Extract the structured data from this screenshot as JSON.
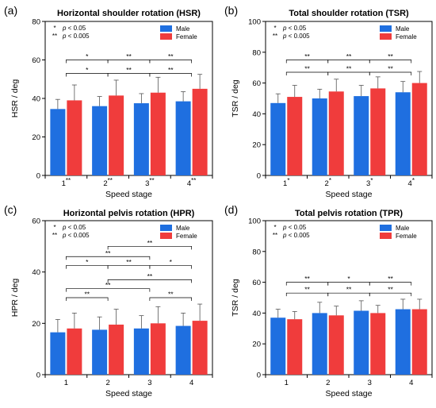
{
  "chart_data": [
    {
      "type": "bar",
      "panel_label": "(a)",
      "title": "Horizontal shoulder rotation (HSR)",
      "xlabel": "Speed stage",
      "ylabel": "HSR / deg",
      "ylim": [
        0,
        80
      ],
      "yticks": [
        0,
        20,
        40,
        60,
        80
      ],
      "categories": [
        "1",
        "2",
        "3",
        "4"
      ],
      "category_marks": [
        "**",
        "**",
        "**",
        "**"
      ],
      "series": [
        {
          "name": "Male",
          "color": "#1f6fe0",
          "values": [
            34.5,
            36,
            37.5,
            38.5
          ],
          "errors": [
            5,
            5,
            5,
            5
          ]
        },
        {
          "name": "Female",
          "color": "#f03c3c",
          "values": [
            39,
            41.5,
            43,
            45
          ],
          "errors": [
            8,
            8,
            8,
            7.5
          ]
        }
      ],
      "significance_key": [
        {
          "mark": "*",
          "text": "p < 0.05"
        },
        {
          "mark": "**",
          "text": "p < 0.005"
        }
      ],
      "brackets": [
        {
          "from": 0,
          "to": 1,
          "y": 60,
          "mark": "*"
        },
        {
          "from": 1,
          "to": 2,
          "y": 60,
          "mark": "**"
        },
        {
          "from": 2,
          "to": 3,
          "y": 60,
          "mark": "**"
        },
        {
          "from": 0,
          "to": 1,
          "y": 53,
          "mark": "*"
        },
        {
          "from": 1,
          "to": 2,
          "y": 53,
          "mark": "**"
        },
        {
          "from": 2,
          "to": 3,
          "y": 53,
          "mark": "**"
        }
      ]
    },
    {
      "type": "bar",
      "panel_label": "(b)",
      "title": "Total shoulder rotation (TSR)",
      "xlabel": "Speed stage",
      "ylabel": "TSR / deg",
      "ylim": [
        0,
        100
      ],
      "yticks": [
        0,
        20,
        40,
        60,
        80,
        100
      ],
      "categories": [
        "1",
        "2",
        "3",
        "4"
      ],
      "category_marks": [
        "*",
        "*",
        "*",
        "*"
      ],
      "series": [
        {
          "name": "Male",
          "color": "#1f6fe0",
          "values": [
            47,
            50,
            51.5,
            54
          ],
          "errors": [
            6,
            6,
            7,
            7
          ]
        },
        {
          "name": "Female",
          "color": "#f03c3c",
          "values": [
            51,
            54.5,
            56.5,
            60
          ],
          "errors": [
            7.5,
            8,
            7.5,
            7.5
          ]
        }
      ],
      "significance_key": [
        {
          "mark": "*",
          "text": "p < 0.05"
        },
        {
          "mark": "**",
          "text": "p < 0.005"
        }
      ],
      "brackets": [
        {
          "from": 0,
          "to": 1,
          "y": 75,
          "mark": "**"
        },
        {
          "from": 1,
          "to": 2,
          "y": 75,
          "mark": "**"
        },
        {
          "from": 2,
          "to": 3,
          "y": 75,
          "mark": "**"
        },
        {
          "from": 0,
          "to": 1,
          "y": 67,
          "mark": "**"
        },
        {
          "from": 1,
          "to": 2,
          "y": 67,
          "mark": "**"
        },
        {
          "from": 2,
          "to": 3,
          "y": 67,
          "mark": "**"
        }
      ]
    },
    {
      "type": "bar",
      "panel_label": "(c)",
      "title": "Horizontal pelvis rotation (HPR)",
      "xlabel": "Speed stage",
      "ylabel": "HPR / deg",
      "ylim": [
        0,
        60
      ],
      "yticks": [
        0,
        20,
        40,
        60
      ],
      "categories": [
        "1",
        "2",
        "3",
        "4"
      ],
      "category_marks": [
        "",
        "",
        "",
        ""
      ],
      "series": [
        {
          "name": "Male",
          "color": "#1f6fe0",
          "values": [
            16.5,
            17.5,
            18,
            19
          ],
          "errors": [
            5,
            5,
            5,
            5
          ]
        },
        {
          "name": "Female",
          "color": "#f03c3c",
          "values": [
            18,
            19.5,
            20,
            21
          ],
          "errors": [
            6,
            6,
            6.5,
            6.5
          ]
        }
      ],
      "significance_key": [
        {
          "mark": "*",
          "text": "p < 0.05"
        },
        {
          "mark": "**",
          "text": "p < 0.005"
        }
      ],
      "brackets": [
        {
          "from": 1,
          "to": 3,
          "y": 50,
          "mark": "**"
        },
        {
          "from": 0,
          "to": 2,
          "y": 46,
          "mark": "**"
        },
        {
          "from": 0,
          "to": 1,
          "y": 42.5,
          "mark": "*"
        },
        {
          "from": 1,
          "to": 2,
          "y": 42.5,
          "mark": "**"
        },
        {
          "from": 2,
          "to": 3,
          "y": 42.5,
          "mark": "*"
        },
        {
          "from": 1,
          "to": 3,
          "y": 37,
          "mark": "**"
        },
        {
          "from": 0,
          "to": 2,
          "y": 33.5,
          "mark": "**"
        },
        {
          "from": 0,
          "to": 1,
          "y": 30,
          "mark": "**"
        },
        {
          "from": 2,
          "to": 3,
          "y": 30,
          "mark": "**"
        }
      ]
    },
    {
      "type": "bar",
      "panel_label": "(d)",
      "title": "Total pelvis rotation (TPR)",
      "xlabel": "Speed stage",
      "ylabel": "TSR / deg",
      "ylim": [
        0,
        100
      ],
      "yticks": [
        0,
        20,
        40,
        60,
        80,
        100
      ],
      "categories": [
        "1",
        "2",
        "3",
        "4"
      ],
      "category_marks": [
        "",
        "",
        "",
        ""
      ],
      "series": [
        {
          "name": "Male",
          "color": "#1f6fe0",
          "values": [
            37,
            40,
            41.5,
            42.5
          ],
          "errors": [
            5.5,
            7,
            6.5,
            6.5
          ]
        },
        {
          "name": "Female",
          "color": "#f03c3c",
          "values": [
            36,
            38.5,
            40,
            42.5
          ],
          "errors": [
            5,
            6,
            5,
            6.5
          ]
        }
      ],
      "significance_key": [
        {
          "mark": "*",
          "text": "p < 0.05"
        },
        {
          "mark": "**",
          "text": "p < 0.005"
        }
      ],
      "brackets": [
        {
          "from": 0,
          "to": 1,
          "y": 60,
          "mark": "**"
        },
        {
          "from": 1,
          "to": 2,
          "y": 60,
          "mark": "*"
        },
        {
          "from": 2,
          "to": 3,
          "y": 60,
          "mark": "**"
        },
        {
          "from": 0,
          "to": 1,
          "y": 53,
          "mark": "**"
        },
        {
          "from": 1,
          "to": 2,
          "y": 53,
          "mark": "**"
        },
        {
          "from": 2,
          "to": 3,
          "y": 53,
          "mark": "**"
        }
      ]
    }
  ]
}
